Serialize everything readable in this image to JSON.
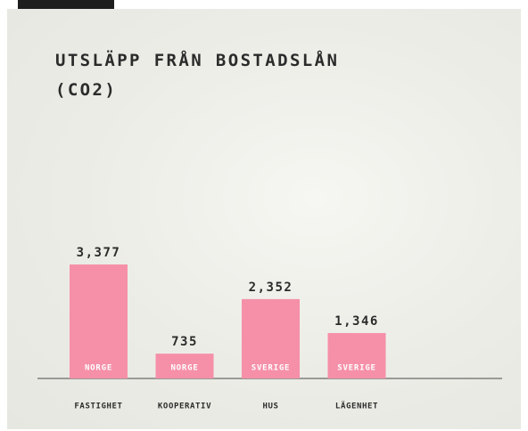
{
  "chart_data": {
    "type": "bar",
    "title": "UTSLÄPP FRÅN BOSTADSLÅN (CO2)",
    "categories": [
      "FASTIGHET",
      "KOOPERATIV",
      "HUS",
      "LÄGENHET"
    ],
    "values": [
      3377,
      735,
      2352,
      1346
    ],
    "value_labels": [
      "3,377",
      "735",
      "2,352",
      "1,346"
    ],
    "bar_labels": [
      "NORGE",
      "NORGE",
      "SVERIGE",
      "SVERIGE"
    ],
    "color": "#f590a8"
  }
}
